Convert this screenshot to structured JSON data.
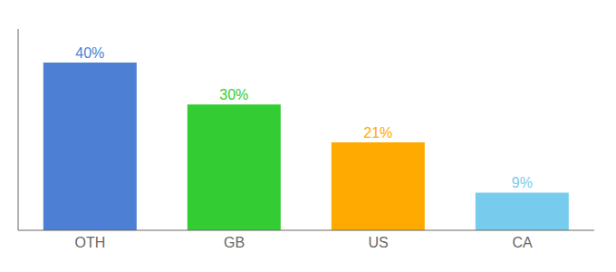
{
  "chart_data": {
    "type": "bar",
    "categories": [
      "OTH",
      "GB",
      "US",
      "CA"
    ],
    "values": [
      40,
      30,
      21,
      9
    ],
    "value_labels": [
      "40%",
      "30%",
      "21%",
      "9%"
    ],
    "colors": [
      "#4d7fd4",
      "#33cc33",
      "#ffaa00",
      "#77ccee"
    ],
    "ylim": [
      0,
      48
    ],
    "data_labels": true,
    "tick_labels": "x",
    "grid": false
  }
}
